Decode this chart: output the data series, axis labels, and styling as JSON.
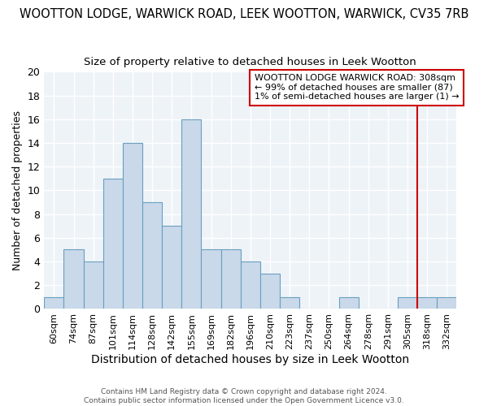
{
  "title": "WOOTTON LODGE, WARWICK ROAD, LEEK WOOTTON, WARWICK, CV35 7RB",
  "subtitle": "Size of property relative to detached houses in Leek Wootton",
  "xlabel": "Distribution of detached houses by size in Leek Wootton",
  "ylabel": "Number of detached properties",
  "bin_labels": [
    "60sqm",
    "74sqm",
    "87sqm",
    "101sqm",
    "114sqm",
    "128sqm",
    "142sqm",
    "155sqm",
    "169sqm",
    "182sqm",
    "196sqm",
    "210sqm",
    "223sqm",
    "237sqm",
    "250sqm",
    "264sqm",
    "278sqm",
    "291sqm",
    "305sqm",
    "318sqm",
    "332sqm"
  ],
  "bar_heights": [
    1,
    5,
    4,
    11,
    14,
    9,
    7,
    16,
    5,
    5,
    4,
    3,
    1,
    0,
    0,
    1,
    0,
    0,
    1,
    1,
    1
  ],
  "bar_color": "#c9d9ea",
  "bar_edgecolor": "#6a9fc0",
  "ylim": [
    0,
    20
  ],
  "yticks": [
    0,
    2,
    4,
    6,
    8,
    10,
    12,
    14,
    16,
    18,
    20
  ],
  "vline_x_index": 18.5,
  "vline_color": "#cc0000",
  "annotation_text": "WOOTTON LODGE WARWICK ROAD: 308sqm\n← 99% of detached houses are smaller (87)\n1% of semi-detached houses are larger (1) →",
  "annotation_box_color": "#cc0000",
  "footer": "Contains HM Land Registry data © Crown copyright and database right 2024.\nContains public sector information licensed under the Open Government Licence v3.0.",
  "background_color": "#eef3f8",
  "title_fontsize": 10.5,
  "subtitle_fontsize": 9.5,
  "ylabel_fontsize": 9,
  "xlabel_fontsize": 10
}
